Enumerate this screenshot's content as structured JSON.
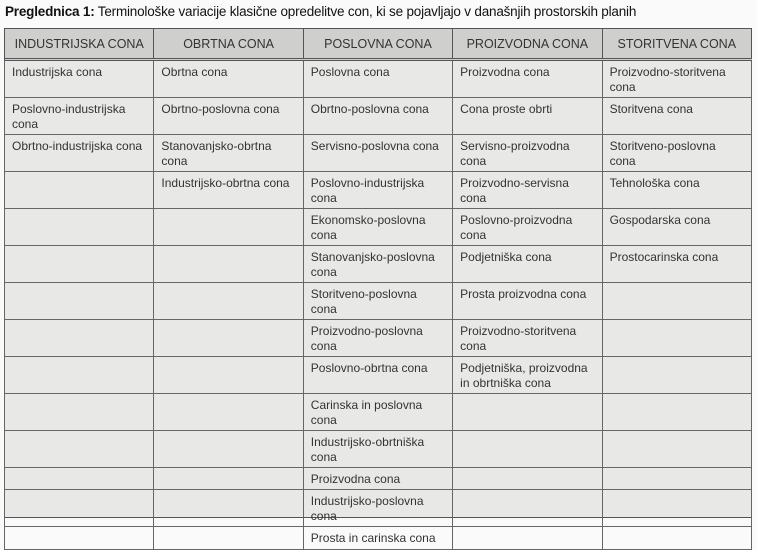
{
  "caption": {
    "label": "Preglednica 1:",
    "text": " Terminološke variacije klasične opredelitve con, ki se pojavljajo v današnjih prostorskih planih"
  },
  "table": {
    "headers": [
      "INDUSTRIJSKA CONA",
      "OBRTNA CONA",
      "POSLOVNA CONA",
      "PROIZVODNA CONA",
      "STORITVENA CONA"
    ],
    "rows": [
      [
        "Industrijska cona",
        "Obrtna cona",
        "Poslovna cona",
        "Proizvodna cona",
        "Proizvodno-storitvena cona"
      ],
      [
        "Poslovno-industrijska cona",
        "Obrtno-poslovna cona",
        "Obrtno-poslovna cona",
        "Cona proste obrti",
        "Storitvena cona"
      ],
      [
        "Obrtno-industrijska cona",
        "Stanovanjsko-obrtna cona",
        "Servisno-poslovna cona",
        "Servisno-proizvodna cona",
        "Storitveno-poslovna cona"
      ],
      [
        "",
        "Industrijsko-obrtna cona",
        "Poslovno-industrijska cona",
        "Proizvodno-servisna cona",
        "Tehnološka cona"
      ],
      [
        "",
        "",
        "Ekonomsko-poslovna cona",
        "Poslovno-proizvodna cona",
        "Gospodarska cona"
      ],
      [
        "",
        "",
        "Stanovanjsko-poslovna cona",
        "Podjetniška cona",
        "Prostocarinska cona"
      ],
      [
        "",
        "",
        "Storitveno-poslovna cona",
        "Prosta proizvodna cona",
        ""
      ],
      [
        "",
        "",
        "Proizvodno-poslovna cona",
        "Proizvodno-storitvena cona",
        ""
      ],
      [
        "",
        "",
        "Poslovno-obrtna cona",
        "Podjetniška, proizvodna in obrtniška cona",
        ""
      ],
      [
        "",
        "",
        "Carinska in poslovna cona",
        "",
        ""
      ],
      [
        "",
        "",
        "Industrijsko-obrtniška cona",
        "",
        ""
      ],
      [
        "",
        "",
        "Proizvodna cona",
        "",
        ""
      ],
      [
        "",
        "",
        "Industrijsko-poslovna cona",
        "",
        ""
      ],
      [
        "",
        "",
        "Prosta in carinska cona",
        "",
        ""
      ]
    ]
  }
}
